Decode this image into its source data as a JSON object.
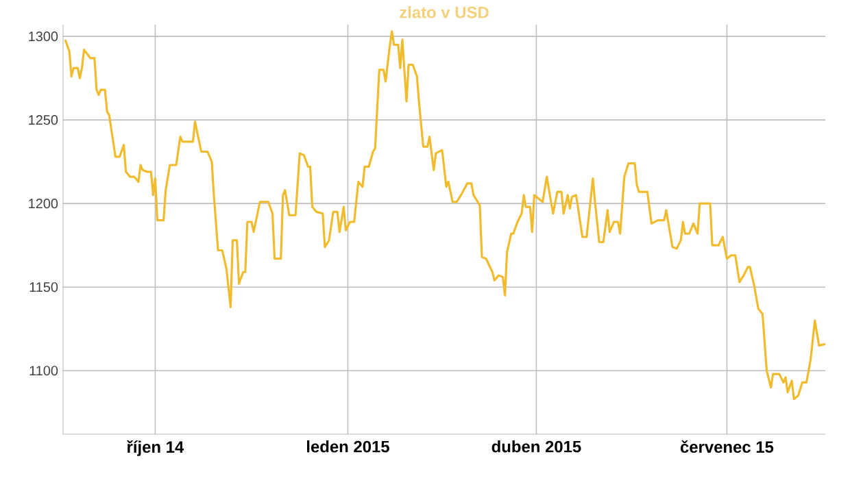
{
  "chart_data": {
    "type": "line",
    "title": "zlato v USD",
    "x": [
      "2014-08-19",
      "2014-08-21",
      "2014-08-22",
      "2014-08-23",
      "2014-08-25",
      "2014-08-26",
      "2014-08-27",
      "2014-08-28",
      "2014-08-31",
      "2014-09-02",
      "2014-09-03",
      "2014-09-04",
      "2014-09-05",
      "2014-09-07",
      "2014-09-08",
      "2014-09-09",
      "2014-09-12",
      "2014-09-14",
      "2014-09-16",
      "2014-09-17",
      "2014-09-19",
      "2014-09-21",
      "2014-09-23",
      "2014-09-24",
      "2014-09-25",
      "2014-09-27",
      "2014-09-29",
      "2014-09-30",
      "2014-10-01",
      "2014-10-02",
      "2014-10-05",
      "2014-10-06",
      "2014-10-08",
      "2014-10-11",
      "2014-10-13",
      "2014-10-14",
      "2014-10-16",
      "2014-10-19",
      "2014-10-20",
      "2014-10-23",
      "2014-10-26",
      "2014-10-28",
      "2014-10-29",
      "2014-10-31",
      "2014-11-02",
      "2014-11-04",
      "2014-11-06",
      "2014-11-07",
      "2014-11-09",
      "2014-11-10",
      "2014-11-12",
      "2014-11-13",
      "2014-11-14",
      "2014-11-16",
      "2014-11-17",
      "2014-11-20",
      "2014-11-22",
      "2014-11-24",
      "2014-11-26",
      "2014-11-27",
      "2014-11-30",
      "2014-12-01",
      "2014-12-02",
      "2014-12-04",
      "2014-12-07",
      "2014-12-09",
      "2014-12-11",
      "2014-12-13",
      "2014-12-14",
      "2014-12-15",
      "2014-12-17",
      "2014-12-20",
      "2014-12-21",
      "2014-12-23",
      "2014-12-25",
      "2014-12-27",
      "2014-12-28",
      "2014-12-30",
      "2014-12-31",
      "2015-01-02",
      "2015-01-04",
      "2015-01-06",
      "2015-01-08",
      "2015-01-09",
      "2015-01-11",
      "2015-01-13",
      "2015-01-14",
      "2015-01-16",
      "2015-01-18",
      "2015-01-19",
      "2015-01-21",
      "2015-01-22",
      "2015-01-23",
      "2015-01-25",
      "2015-01-26",
      "2015-01-27",
      "2015-01-29",
      "2015-01-30",
      "2015-02-01",
      "2015-02-03",
      "2015-02-04",
      "2015-02-06",
      "2015-02-08",
      "2015-02-09",
      "2015-02-11",
      "2015-02-12",
      "2015-02-15",
      "2015-02-17",
      "2015-02-18",
      "2015-02-20",
      "2015-02-22",
      "2015-02-24",
      "2015-02-27",
      "2015-03-01",
      "2015-03-02",
      "2015-03-05",
      "2015-03-06",
      "2015-03-08",
      "2015-03-11",
      "2015-03-12",
      "2015-03-14",
      "2015-03-16",
      "2015-03-17",
      "2015-03-18",
      "2015-03-20",
      "2015-03-21",
      "2015-03-23",
      "2015-03-25",
      "2015-03-26",
      "2015-03-27",
      "2015-03-29",
      "2015-03-30",
      "2015-03-31",
      "2015-04-04",
      "2015-04-06",
      "2015-04-08",
      "2015-04-09",
      "2015-04-11",
      "2015-04-13",
      "2015-04-14",
      "2015-04-16",
      "2015-04-17",
      "2015-04-18",
      "2015-04-20",
      "2015-04-23",
      "2015-04-25",
      "2015-04-28",
      "2015-04-29",
      "2015-05-01",
      "2015-05-03",
      "2015-05-05",
      "2015-05-06",
      "2015-05-08",
      "2015-05-10",
      "2015-05-11",
      "2015-05-13",
      "2015-05-15",
      "2015-05-18",
      "2015-05-19",
      "2015-05-20",
      "2015-05-24",
      "2015-05-26",
      "2015-05-29",
      "2015-06-01",
      "2015-06-02",
      "2015-06-05",
      "2015-06-07",
      "2015-06-09",
      "2015-06-10",
      "2015-06-11",
      "2015-06-13",
      "2015-06-15",
      "2015-06-17",
      "2015-06-18",
      "2015-06-23",
      "2015-06-24",
      "2015-06-27",
      "2015-06-29",
      "2015-07-01",
      "2015-07-03",
      "2015-07-05",
      "2015-07-07",
      "2015-07-09",
      "2015-07-11",
      "2015-07-12",
      "2015-07-14",
      "2015-07-16",
      "2015-07-18",
      "2015-07-20",
      "2015-07-22",
      "2015-07-23",
      "2015-07-26",
      "2015-07-28",
      "2015-07-29",
      "2015-07-30",
      "2015-08-01",
      "2015-08-02",
      "2015-08-04",
      "2015-08-06",
      "2015-08-08",
      "2015-08-10",
      "2015-08-12",
      "2015-08-14",
      "2015-08-17"
    ],
    "series": [
      {
        "color": "#f0bc2e",
        "values": [
          1298,
          1291,
          1276,
          1281,
          1281,
          1275,
          1281,
          1292,
          1287,
          1287,
          1268,
          1265,
          1268,
          1268,
          1255,
          1253,
          1228,
          1228,
          1235,
          1219,
          1216,
          1216,
          1213,
          1223,
          1220,
          1219,
          1219,
          1205,
          1215,
          1190,
          1190,
          1208,
          1223,
          1223,
          1240,
          1237,
          1237,
          1237,
          1249,
          1231,
          1231,
          1225,
          1205,
          1172,
          1172,
          1161,
          1138,
          1178,
          1178,
          1152,
          1159,
          1159,
          1189,
          1189,
          1183,
          1201,
          1201,
          1201,
          1194,
          1167,
          1167,
          1205,
          1208,
          1193,
          1193,
          1230,
          1229,
          1222,
          1222,
          1198,
          1195,
          1194,
          1174,
          1178,
          1195,
          1195,
          1183,
          1198,
          1184,
          1189,
          1189,
          1213,
          1210,
          1222,
          1222,
          1231,
          1233,
          1280,
          1280,
          1273,
          1294,
          1303,
          1295,
          1295,
          1281,
          1298,
          1261,
          1283,
          1283,
          1276,
          1260,
          1234,
          1234,
          1240,
          1220,
          1230,
          1232,
          1210,
          1213,
          1201,
          1201,
          1205,
          1212,
          1212,
          1205,
          1199,
          1168,
          1167,
          1159,
          1154,
          1157,
          1156,
          1145,
          1171,
          1182,
          1182,
          1189,
          1194,
          1205,
          1198,
          1198,
          1183,
          1205,
          1201,
          1216,
          1201,
          1194,
          1207,
          1207,
          1194,
          1205,
          1197,
          1204,
          1205,
          1180,
          1180,
          1215,
          1201,
          1177,
          1177,
          1196,
          1183,
          1189,
          1189,
          1182,
          1216,
          1224,
          1224,
          1211,
          1207,
          1207,
          1188,
          1190,
          1190,
          1196,
          1174,
          1173,
          1178,
          1189,
          1182,
          1182,
          1188,
          1182,
          1200,
          1200,
          1175,
          1175,
          1180,
          1167,
          1169,
          1169,
          1153,
          1157,
          1162,
          1162,
          1151,
          1137,
          1134,
          1100,
          1090,
          1098,
          1098,
          1093,
          1096,
          1087,
          1094,
          1083,
          1085,
          1093,
          1093,
          1107,
          1130,
          1115,
          1116
        ]
      }
    ],
    "xlim": [
      "2014-08-18",
      "2015-08-17"
    ],
    "xticks": [
      {
        "value": "2014-10-01",
        "label": "říjen 14"
      },
      {
        "value": "2015-01-01",
        "label": "leden 2015"
      },
      {
        "value": "2015-04-01",
        "label": "duben 2015"
      },
      {
        "value": "2015-07-01",
        "label": "červenec 15"
      }
    ],
    "ylim": [
      1062,
      1307
    ],
    "yticks": [
      1100,
      1150,
      1200,
      1250,
      1300
    ],
    "grid": true,
    "marker": "none",
    "line_style": "solid"
  }
}
